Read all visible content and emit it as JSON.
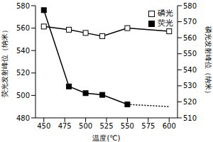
{
  "chart_data": {
    "type": "line",
    "x_label": "温度(℃)",
    "y_label": "荧光发射峰位（纳米）",
    "y2_label": "磷光发射峰位（纳米）",
    "x": [
      450,
      480,
      500,
      520,
      550,
      600
    ],
    "xlim": [
      440,
      610
    ],
    "xticks": [
      450,
      475,
      500,
      525,
      550,
      575,
      600
    ],
    "ylim": [
      480,
      580
    ],
    "yticks": [
      480,
      500,
      520,
      540,
      560,
      580
    ],
    "y2lim": [
      510,
      580
    ],
    "y2ticks": [
      510,
      520,
      530,
      540,
      550,
      560,
      570,
      580
    ],
    "grid": false,
    "legend": "top right",
    "series": [
      {
        "name": "磷光",
        "color": "#000000",
        "marker": "open_square",
        "line_style": "solid",
        "axis": "y2",
        "values": [
          567,
          565,
          563,
          561,
          566,
          564
        ]
      },
      {
        "name": "荧光",
        "color": "#000000",
        "marker": "square",
        "line_style": "solid",
        "axis": "y",
        "values": [
          576,
          508,
          502,
          500.5,
          492,
          null
        ],
        "extension": {
          "x": [
            550,
            600
          ],
          "values": [
            492,
            490
          ],
          "line_style": "dotted"
        }
      }
    ]
  }
}
